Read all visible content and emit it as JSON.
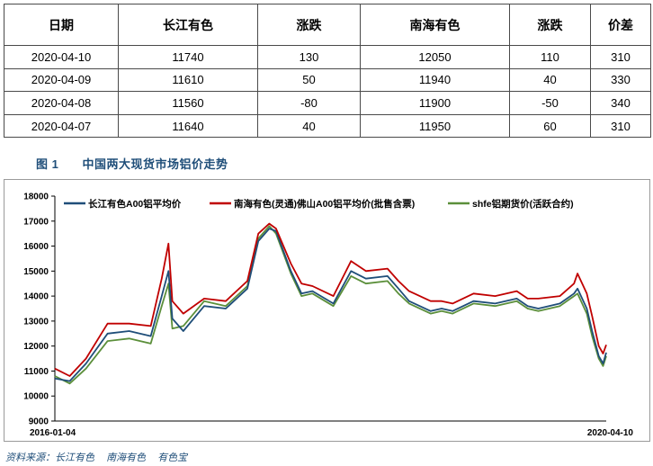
{
  "table": {
    "headers": [
      "日期",
      "长江有色",
      "涨跌",
      "南海有色",
      "涨跌",
      "价差"
    ],
    "rows": [
      [
        "2020-04-10",
        "11740",
        "130",
        "12050",
        "110",
        "310"
      ],
      [
        "2020-04-09",
        "11610",
        "50",
        "11940",
        "40",
        "330"
      ],
      [
        "2020-04-08",
        "11560",
        "-80",
        "11900",
        "-50",
        "340"
      ],
      [
        "2020-04-07",
        "11640",
        "40",
        "11950",
        "60",
        "310"
      ]
    ]
  },
  "figure": {
    "number": "图 1",
    "title": "中国两大现货市场铝价走势"
  },
  "source": {
    "label": "资料来源：长江有色",
    "items": [
      "南海有色",
      "有色宝"
    ]
  },
  "chart_data": {
    "type": "line",
    "xlabel": "",
    "ylabel": "",
    "ylim": [
      9000,
      18000
    ],
    "yticks": [
      9000,
      10000,
      11000,
      12000,
      13000,
      14000,
      15000,
      16000,
      17000,
      18000
    ],
    "xtick_labels": [
      "2016-01-04",
      "2020-04-10"
    ],
    "x_range": [
      "2016-01-04",
      "2020-04-10"
    ],
    "grid": false,
    "legend_position": "top",
    "series": [
      {
        "name": "长江有色A00铝平均价",
        "color": "#1f4e79",
        "x": [
          "2016-01-04",
          "2016-02-15",
          "2016-04-01",
          "2016-06-01",
          "2016-08-01",
          "2016-10-01",
          "2016-11-01",
          "2016-11-20",
          "2016-12-01",
          "2017-01-01",
          "2017-03-01",
          "2017-05-01",
          "2017-07-01",
          "2017-08-01",
          "2017-09-01",
          "2017-09-20",
          "2017-11-01",
          "2017-12-01",
          "2018-01-01",
          "2018-03-01",
          "2018-04-20",
          "2018-06-01",
          "2018-08-01",
          "2018-09-01",
          "2018-10-01",
          "2018-12-01",
          "2019-01-01",
          "2019-02-01",
          "2019-04-01",
          "2019-06-01",
          "2019-08-01",
          "2019-09-01",
          "2019-10-01",
          "2019-12-01",
          "2020-01-10",
          "2020-01-20",
          "2020-02-15",
          "2020-03-01",
          "2020-03-20",
          "2020-04-01",
          "2020-04-10"
        ],
        "values": [
          10700,
          10600,
          11300,
          12500,
          12600,
          12400,
          14000,
          15000,
          13100,
          12600,
          13600,
          13500,
          14300,
          16200,
          16700,
          16600,
          15000,
          14100,
          14200,
          13700,
          15000,
          14700,
          14800,
          14300,
          13800,
          13400,
          13500,
          13400,
          13800,
          13700,
          13900,
          13600,
          13500,
          13700,
          14100,
          14300,
          13500,
          12600,
          11600,
          11300,
          11740
        ]
      },
      {
        "name": "南海有色(灵通)佛山A00铝平均价(批售含票)",
        "color": "#c00000",
        "x": [
          "2016-01-04",
          "2016-02-15",
          "2016-04-01",
          "2016-06-01",
          "2016-08-01",
          "2016-10-01",
          "2016-11-01",
          "2016-11-20",
          "2016-12-01",
          "2017-01-01",
          "2017-03-01",
          "2017-05-01",
          "2017-07-01",
          "2017-08-01",
          "2017-09-01",
          "2017-09-20",
          "2017-11-01",
          "2017-12-01",
          "2018-01-01",
          "2018-03-01",
          "2018-04-20",
          "2018-06-01",
          "2018-08-01",
          "2018-09-01",
          "2018-10-01",
          "2018-12-01",
          "2019-01-01",
          "2019-02-01",
          "2019-04-01",
          "2019-06-01",
          "2019-08-01",
          "2019-09-01",
          "2019-10-01",
          "2019-12-01",
          "2020-01-10",
          "2020-01-20",
          "2020-02-15",
          "2020-03-01",
          "2020-03-20",
          "2020-04-01",
          "2020-04-10"
        ],
        "values": [
          11100,
          10800,
          11500,
          12900,
          12900,
          12800,
          14700,
          16100,
          13800,
          13300,
          13900,
          13800,
          14600,
          16500,
          16900,
          16700,
          15300,
          14500,
          14400,
          14000,
          15400,
          15000,
          15100,
          14600,
          14200,
          13800,
          13800,
          13700,
          14100,
          14000,
          14200,
          13900,
          13900,
          14000,
          14500,
          14900,
          14100,
          13200,
          12000,
          11700,
          12050
        ]
      },
      {
        "name": "shfe铝期货价(活跃合约)",
        "color": "#5b8f3a",
        "x": [
          "2016-01-04",
          "2016-02-15",
          "2016-04-01",
          "2016-06-01",
          "2016-08-01",
          "2016-10-01",
          "2016-11-01",
          "2016-11-20",
          "2016-12-01",
          "2017-01-01",
          "2017-03-01",
          "2017-05-01",
          "2017-07-01",
          "2017-08-01",
          "2017-09-01",
          "2017-09-20",
          "2017-11-01",
          "2017-12-01",
          "2018-01-01",
          "2018-03-01",
          "2018-04-20",
          "2018-06-01",
          "2018-08-01",
          "2018-09-01",
          "2018-10-01",
          "2018-12-01",
          "2019-01-01",
          "2019-02-01",
          "2019-04-01",
          "2019-06-01",
          "2019-08-01",
          "2019-09-01",
          "2019-10-01",
          "2019-12-01",
          "2020-01-10",
          "2020-01-20",
          "2020-02-15",
          "2020-03-01",
          "2020-03-20",
          "2020-04-01",
          "2020-04-10"
        ],
        "values": [
          10800,
          10500,
          11100,
          12200,
          12300,
          12100,
          13600,
          14500,
          12700,
          12800,
          13800,
          13600,
          14400,
          16300,
          16800,
          16500,
          14900,
          14000,
          14100,
          13600,
          14800,
          14500,
          14600,
          14100,
          13700,
          13300,
          13400,
          13300,
          13700,
          13600,
          13800,
          13500,
          13400,
          13600,
          14000,
          14100,
          13300,
          12400,
          11500,
          11200,
          11600
        ]
      }
    ]
  }
}
